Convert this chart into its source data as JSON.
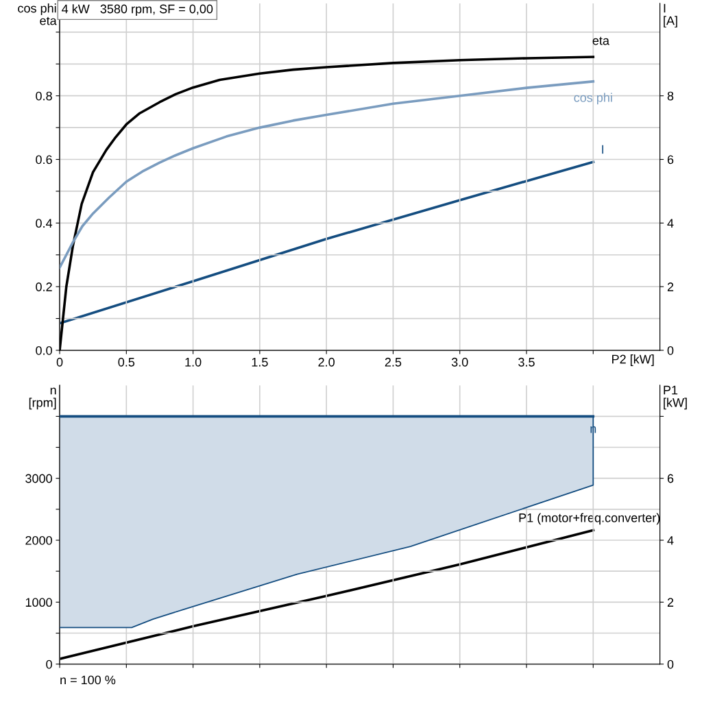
{
  "chart_data": [
    {
      "type": "line",
      "title": "4 kW   3580 rpm, SF = 0,00",
      "xlabel": "P2 [kW]",
      "ylabel": "cos phi\neta",
      "y2label": "I\n[A]",
      "xlim": [
        0,
        4.5
      ],
      "xticks": [
        0,
        0.5,
        {
          "value": 1,
          "label": "1.0"
        },
        1.5,
        {
          "value": 2,
          "label": "2.0"
        },
        2.5,
        {
          "value": 3,
          "label": "3.0"
        },
        3.5,
        {
          "value": 4.0,
          "label": null
        }
      ],
      "ylim": [
        0,
        1.09
      ],
      "yticks": [
        {
          "value": 0,
          "label": "0.0"
        },
        {
          "value": 0.1,
          "label": null
        },
        0.2,
        {
          "value": 0.3,
          "label": null
        },
        0.4,
        {
          "value": 0.5,
          "label": null
        },
        0.6,
        {
          "value": 0.7,
          "label": null
        },
        0.8,
        {
          "value": 0.9,
          "label": null
        },
        {
          "value": 1.0,
          "label": null
        }
      ],
      "y2lim": [
        0,
        10.9
      ],
      "y2ticks": [
        0,
        2,
        4,
        6,
        8
      ],
      "grid": true,
      "legend": false,
      "marker": "none",
      "line_style": "solid",
      "series": [
        {
          "name": "eta",
          "color": "#000000",
          "x": [
            0,
            0.05,
            0.1,
            0.165,
            0.25,
            0.35,
            0.42,
            0.5,
            0.6,
            0.75,
            0.87,
            1.0,
            1.2,
            1.5,
            1.75,
            2.0,
            2.5,
            3.0,
            3.5,
            4.0
          ],
          "values": [
            0,
            0.2,
            0.33,
            0.46,
            0.56,
            0.63,
            0.67,
            0.71,
            0.745,
            0.78,
            0.805,
            0.826,
            0.85,
            0.87,
            0.882,
            0.89,
            0.903,
            0.912,
            0.918,
            0.922
          ]
        },
        {
          "name": "cos phi",
          "color": "#7a9cbf",
          "x": [
            0,
            0.05,
            0.1,
            0.17,
            0.25,
            0.37,
            0.5,
            0.62,
            0.75,
            0.87,
            1.0,
            1.25,
            1.5,
            1.75,
            2.0,
            2.5,
            3.0,
            3.5,
            4.0
          ],
          "values": [
            0.26,
            0.3,
            0.34,
            0.39,
            0.43,
            0.48,
            0.53,
            0.562,
            0.59,
            0.613,
            0.635,
            0.672,
            0.7,
            0.722,
            0.74,
            0.775,
            0.8,
            0.825,
            0.845
          ]
        },
        {
          "name": "I",
          "color": "#144d80",
          "axis": "y2",
          "x": [
            0,
            1.0,
            2.0,
            3.0,
            4.0
          ],
          "values": [
            0.85,
            2.17,
            3.5,
            4.72,
            5.92
          ]
        }
      ]
    },
    {
      "type": "line",
      "ylabel": "n\n[rpm]",
      "y2label": "P1\n[kW]",
      "annotations": [
        "n = 100 %"
      ],
      "tick_labels": "y",
      "xlim": [
        0,
        4.5
      ],
      "xticks": [
        0,
        0.5,
        1.0,
        1.5,
        2.0,
        2.5,
        3.0,
        3.5,
        4.0
      ],
      "ylim": [
        0,
        4500
      ],
      "yticks": [
        0,
        {
          "value": 500,
          "label": null
        },
        1000,
        {
          "value": 1500,
          "label": null
        },
        2000,
        {
          "value": 2500,
          "label": null
        },
        3000,
        {
          "value": 3500,
          "label": null
        },
        {
          "value": 4000,
          "label": null
        }
      ],
      "y2lim": [
        0,
        9
      ],
      "y2ticks": [
        0,
        2,
        4,
        6,
        {
          "value": 8,
          "label": null
        }
      ],
      "grid": true,
      "legend": false,
      "marker": "none",
      "line_style": "solid",
      "series": [
        {
          "name": "n",
          "color": "#144d80",
          "x": [
            0,
            0.54,
            0.7,
            0.94,
            1.78,
            2.63,
            4.0
          ],
          "values": [
            4000,
            4000,
            4000,
            4000,
            4000,
            4000,
            4000
          ],
          "lower": [
            590,
            590,
            725,
            890,
            1450,
            1900,
            2890
          ],
          "upper": [
            4000,
            4000,
            4000,
            4000,
            4000,
            4000,
            4000
          ]
        },
        {
          "color": "#144d80",
          "x": [
            0,
            0.54,
            0.7,
            0.94,
            1.78,
            2.63,
            4.0,
            4.0
          ],
          "values": [
            590,
            590,
            725,
            890,
            1450,
            1900,
            2890,
            4000
          ]
        },
        {
          "name": "P1 (motor+freq.converter)",
          "color": "#000000",
          "axis": "y2",
          "x": [
            0,
            1.0,
            2.0,
            3.0,
            4.0
          ],
          "values": [
            0.17,
            1.22,
            2.2,
            3.22,
            4.32
          ]
        }
      ]
    }
  ]
}
